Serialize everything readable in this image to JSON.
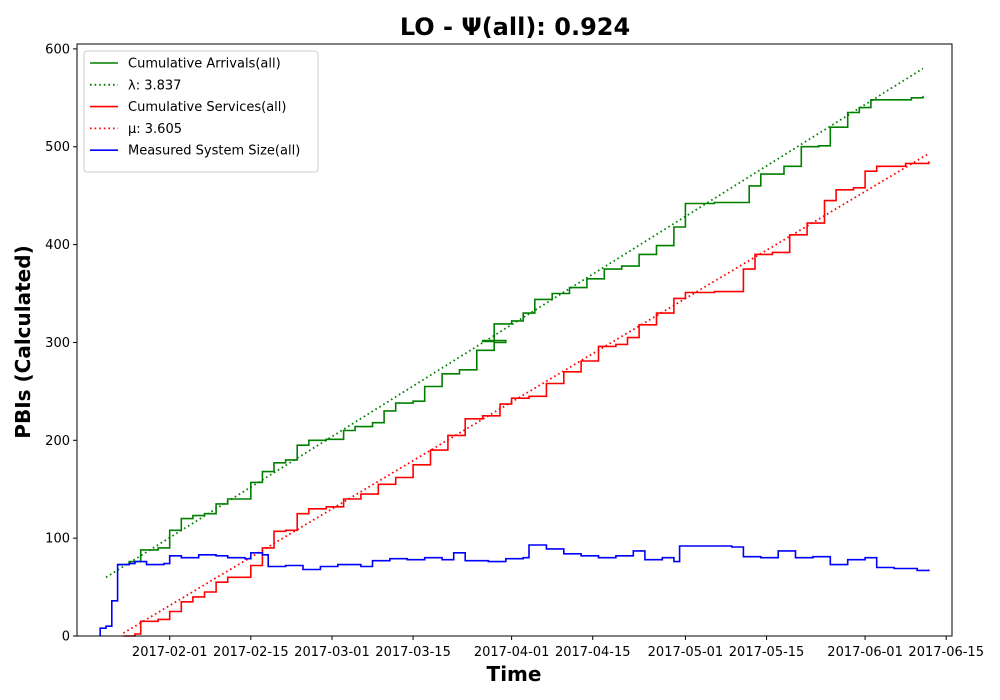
{
  "chart_data": {
    "type": "line",
    "title": "LO -  Ψ(all): 0.924",
    "xlabel": "Time",
    "ylabel": "PBIs (Calculated)",
    "x_axis": "date",
    "xlim": [
      "2017-01-16",
      "2017-06-16"
    ],
    "ylim": [
      0,
      605
    ],
    "x_ticks": [
      "2017-02-01",
      "2017-02-15",
      "2017-03-01",
      "2017-03-15",
      "2017-04-01",
      "2017-04-15",
      "2017-05-01",
      "2017-05-15",
      "2017-06-01",
      "2017-06-15"
    ],
    "y_ticks": [
      0,
      100,
      200,
      300,
      400,
      500,
      600
    ],
    "grid": false,
    "legend_position": "top-left",
    "series": [
      {
        "name": "Cumulative Arrivals(all)",
        "style": "solid",
        "color": "#008000",
        "points": [
          [
            "2017-01-23",
            73
          ],
          [
            "2017-01-25",
            76
          ],
          [
            "2017-01-27",
            88
          ],
          [
            "2017-01-30",
            90
          ],
          [
            "2017-02-01",
            108
          ],
          [
            "2017-02-03",
            120
          ],
          [
            "2017-02-05",
            123
          ],
          [
            "2017-02-07",
            125
          ],
          [
            "2017-02-09",
            135
          ],
          [
            "2017-02-11",
            140
          ],
          [
            "2017-02-14",
            140
          ],
          [
            "2017-02-15",
            157
          ],
          [
            "2017-02-17",
            168
          ],
          [
            "2017-02-19",
            177
          ],
          [
            "2017-02-21",
            180
          ],
          [
            "2017-02-23",
            195
          ],
          [
            "2017-02-25",
            200
          ],
          [
            "2017-02-28",
            201
          ],
          [
            "2017-03-03",
            210
          ],
          [
            "2017-03-05",
            214
          ],
          [
            "2017-03-08",
            218
          ],
          [
            "2017-03-10",
            230
          ],
          [
            "2017-03-12",
            238
          ],
          [
            "2017-03-15",
            240
          ],
          [
            "2017-03-17",
            255
          ],
          [
            "2017-03-20",
            268
          ],
          [
            "2017-03-23",
            272
          ],
          [
            "2017-03-26",
            292
          ],
          [
            "2017-03-29",
            300
          ],
          [
            "2017-03-31",
            302
          ],
          [
            "2017-03-27",
            301
          ],
          [
            "2017-03-29",
            319
          ],
          [
            "2017-04-01",
            322
          ],
          [
            "2017-04-03",
            330
          ],
          [
            "2017-04-05",
            344
          ],
          [
            "2017-04-08",
            350
          ],
          [
            "2017-04-11",
            356
          ],
          [
            "2017-04-14",
            365
          ],
          [
            "2017-04-17",
            375
          ],
          [
            "2017-04-20",
            378
          ],
          [
            "2017-04-23",
            390
          ],
          [
            "2017-04-26",
            399
          ],
          [
            "2017-04-29",
            418
          ],
          [
            "2017-05-01",
            442
          ],
          [
            "2017-05-06",
            443
          ],
          [
            "2017-05-09",
            443
          ],
          [
            "2017-05-12",
            460
          ],
          [
            "2017-05-14",
            472
          ],
          [
            "2017-05-18",
            480
          ],
          [
            "2017-05-21",
            500
          ],
          [
            "2017-05-24",
            501
          ],
          [
            "2017-05-26",
            520
          ],
          [
            "2017-05-29",
            535
          ],
          [
            "2017-05-31",
            540
          ],
          [
            "2017-06-02",
            548
          ],
          [
            "2017-06-09",
            550
          ],
          [
            "2017-06-11",
            552
          ]
        ]
      },
      {
        "name": "λ: 3.837",
        "style": "dotted",
        "color": "#008000",
        "points": [
          [
            "2017-01-21",
            60
          ],
          [
            "2017-06-11",
            580
          ]
        ]
      },
      {
        "name": "Cumulative Services(all)",
        "style": "solid",
        "color": "#ff0000",
        "points": [
          [
            "2017-01-24",
            0
          ],
          [
            "2017-01-26",
            2
          ],
          [
            "2017-01-27",
            15
          ],
          [
            "2017-01-30",
            17
          ],
          [
            "2017-02-01",
            25
          ],
          [
            "2017-02-03",
            35
          ],
          [
            "2017-02-05",
            40
          ],
          [
            "2017-02-07",
            45
          ],
          [
            "2017-02-09",
            55
          ],
          [
            "2017-02-11",
            60
          ],
          [
            "2017-02-14",
            60
          ],
          [
            "2017-02-15",
            72
          ],
          [
            "2017-02-17",
            90
          ],
          [
            "2017-02-19",
            107
          ],
          [
            "2017-02-21",
            108
          ],
          [
            "2017-02-23",
            125
          ],
          [
            "2017-02-25",
            130
          ],
          [
            "2017-02-28",
            132
          ],
          [
            "2017-03-03",
            140
          ],
          [
            "2017-03-06",
            145
          ],
          [
            "2017-03-09",
            155
          ],
          [
            "2017-03-12",
            162
          ],
          [
            "2017-03-15",
            175
          ],
          [
            "2017-03-18",
            190
          ],
          [
            "2017-03-21",
            205
          ],
          [
            "2017-03-24",
            222
          ],
          [
            "2017-03-27",
            225
          ],
          [
            "2017-03-30",
            237
          ],
          [
            "2017-04-01",
            243
          ],
          [
            "2017-04-04",
            245
          ],
          [
            "2017-04-07",
            258
          ],
          [
            "2017-04-10",
            270
          ],
          [
            "2017-04-13",
            281
          ],
          [
            "2017-04-16",
            296
          ],
          [
            "2017-04-19",
            298
          ],
          [
            "2017-04-21",
            305
          ],
          [
            "2017-04-23",
            318
          ],
          [
            "2017-04-26",
            330
          ],
          [
            "2017-04-29",
            345
          ],
          [
            "2017-05-01",
            351
          ],
          [
            "2017-05-06",
            352
          ],
          [
            "2017-05-09",
            352
          ],
          [
            "2017-05-11",
            375
          ],
          [
            "2017-05-13",
            390
          ],
          [
            "2017-05-16",
            392
          ],
          [
            "2017-05-19",
            410
          ],
          [
            "2017-05-22",
            422
          ],
          [
            "2017-05-25",
            445
          ],
          [
            "2017-05-27",
            456
          ],
          [
            "2017-05-30",
            458
          ],
          [
            "2017-06-01",
            475
          ],
          [
            "2017-06-03",
            480
          ],
          [
            "2017-06-08",
            483
          ],
          [
            "2017-06-12",
            485
          ]
        ]
      },
      {
        "name": "μ: 3.605",
        "style": "dotted",
        "color": "#ff0000",
        "points": [
          [
            "2017-01-24",
            3
          ],
          [
            "2017-06-12",
            493
          ]
        ]
      },
      {
        "name": "Measured System Size(all)",
        "style": "solid",
        "color": "#0000ff",
        "points": [
          [
            "2017-01-20",
            0
          ],
          [
            "2017-01-20",
            8
          ],
          [
            "2017-01-21",
            10
          ],
          [
            "2017-01-22",
            36
          ],
          [
            "2017-01-23",
            73
          ],
          [
            "2017-01-25",
            74
          ],
          [
            "2017-01-26",
            76
          ],
          [
            "2017-01-28",
            73
          ],
          [
            "2017-01-31",
            74
          ],
          [
            "2017-02-01",
            82
          ],
          [
            "2017-02-03",
            80
          ],
          [
            "2017-02-06",
            83
          ],
          [
            "2017-02-09",
            82
          ],
          [
            "2017-02-11",
            80
          ],
          [
            "2017-02-14",
            79
          ],
          [
            "2017-02-15",
            85
          ],
          [
            "2017-02-17",
            83
          ],
          [
            "2017-02-18",
            71
          ],
          [
            "2017-02-21",
            72
          ],
          [
            "2017-02-24",
            68
          ],
          [
            "2017-02-27",
            71
          ],
          [
            "2017-03-02",
            73
          ],
          [
            "2017-03-06",
            71
          ],
          [
            "2017-03-08",
            77
          ],
          [
            "2017-03-11",
            79
          ],
          [
            "2017-03-14",
            78
          ],
          [
            "2017-03-17",
            80
          ],
          [
            "2017-03-20",
            78
          ],
          [
            "2017-03-22",
            85
          ],
          [
            "2017-03-24",
            77
          ],
          [
            "2017-03-28",
            76
          ],
          [
            "2017-03-31",
            79
          ],
          [
            "2017-04-03",
            80
          ],
          [
            "2017-04-04",
            93
          ],
          [
            "2017-04-07",
            89
          ],
          [
            "2017-04-10",
            84
          ],
          [
            "2017-04-13",
            82
          ],
          [
            "2017-04-16",
            80
          ],
          [
            "2017-04-19",
            82
          ],
          [
            "2017-04-22",
            87
          ],
          [
            "2017-04-24",
            78
          ],
          [
            "2017-04-27",
            80
          ],
          [
            "2017-04-29",
            76
          ],
          [
            "2017-04-30",
            92
          ],
          [
            "2017-05-09",
            91
          ],
          [
            "2017-05-11",
            81
          ],
          [
            "2017-05-14",
            80
          ],
          [
            "2017-05-17",
            87
          ],
          [
            "2017-05-20",
            80
          ],
          [
            "2017-05-23",
            81
          ],
          [
            "2017-05-26",
            73
          ],
          [
            "2017-05-29",
            78
          ],
          [
            "2017-06-01",
            80
          ],
          [
            "2017-06-03",
            70
          ],
          [
            "2017-06-06",
            69
          ],
          [
            "2017-06-10",
            67
          ],
          [
            "2017-06-12",
            68
          ]
        ]
      }
    ]
  }
}
